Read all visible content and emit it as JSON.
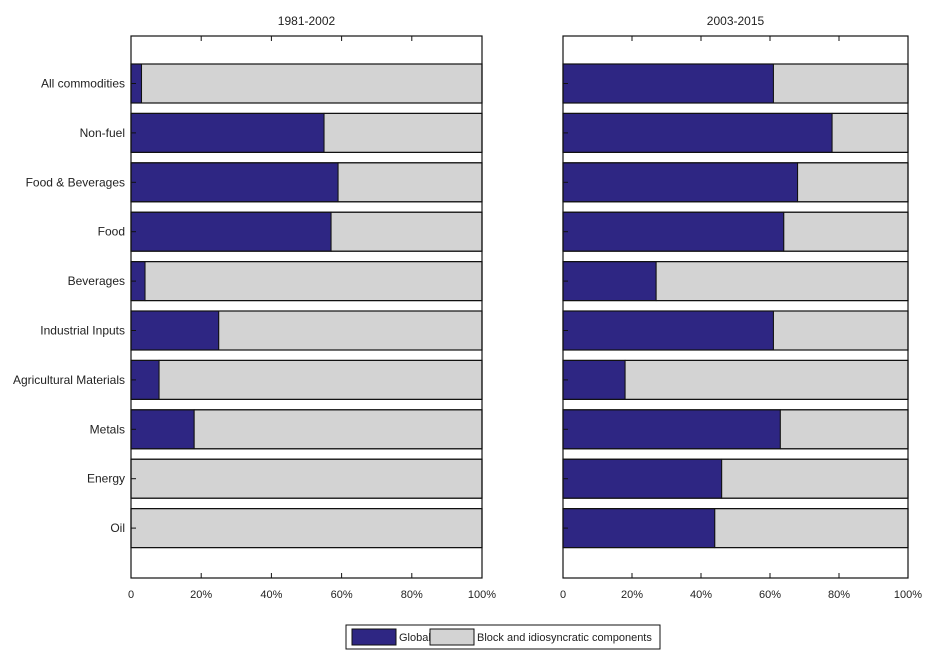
{
  "chart_data": {
    "type": "bar",
    "stacked": true,
    "orientation": "horizontal",
    "categories": [
      "All commodities",
      "Non-fuel",
      "Food & Beverages",
      "Food",
      "Beverages",
      "Industrial Inputs",
      "Agricultural Materials",
      "Metals",
      "Energy",
      "Oil"
    ],
    "panels": [
      {
        "title": "1981-2002",
        "xlim": [
          0,
          100
        ],
        "series": [
          {
            "name": "Global",
            "values": [
              3,
              55,
              59,
              57,
              4,
              25,
              8,
              18,
              0,
              0
            ]
          },
          {
            "name": "Block and idiosyncratic components",
            "values": [
              97,
              45,
              41,
              43,
              96,
              75,
              92,
              82,
              100,
              100
            ]
          }
        ]
      },
      {
        "title": "2003-2015",
        "xlim": [
          0,
          100
        ],
        "series": [
          {
            "name": "Global",
            "values": [
              61,
              78,
              68,
              64,
              27,
              61,
              18,
              63,
              46,
              44
            ]
          },
          {
            "name": "Block and idiosyncratic components",
            "values": [
              39,
              22,
              32,
              36,
              73,
              39,
              82,
              37,
              54,
              56
            ]
          }
        ]
      }
    ],
    "xticks": [
      "0",
      "20%",
      "40%",
      "60%",
      "80%",
      "100%"
    ],
    "legend": {
      "position": "bottom-center",
      "entries": [
        "Global",
        "Block and idiosyncratic components"
      ]
    },
    "colors": {
      "Global": "#2e2683",
      "Block and idiosyncratic components": "#d3d3d3"
    },
    "grid": false
  }
}
